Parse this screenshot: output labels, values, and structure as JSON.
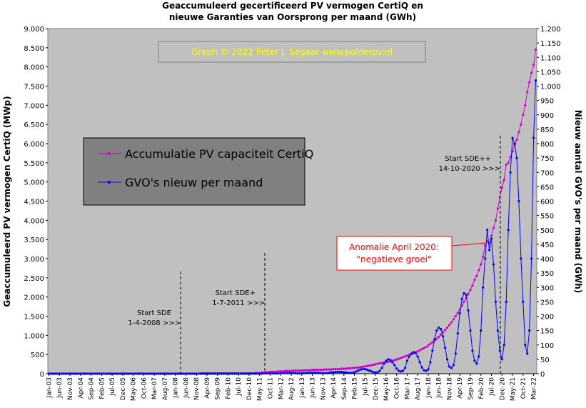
{
  "chart_data": {
    "type": "line",
    "title": [
      "Geaccumuleerd gecertificeerd PV vermogen CertiQ en",
      "nieuwe Garanties van Oorsprong per maand (GWh)"
    ],
    "ylabel": "Geaccumuleerd PV vermogen CertiQ (MWp)",
    "y2label": "Nieuw aantal GVO's per maand (GWh)",
    "annotations": [
      "Graph © 2022 Peter J. Segaar www.polderpv.nl",
      "Start SDE",
      "1-4-2008 >>>",
      "Start SDE+",
      "1-7-2011 >>>",
      "Start SDE++",
      "14-10-2020 >>>",
      "Anomalie April 2020:",
      "\"negatieve groei\""
    ],
    "ylim": [
      0,
      9000
    ],
    "yticks": [
      0,
      500,
      {
        "value": 1000,
        "label": "1.000"
      },
      {
        "value": 1500,
        "label": "1.500"
      },
      {
        "value": 2000,
        "label": "2.000"
      },
      {
        "value": 2500,
        "label": "2.500"
      },
      {
        "value": 3000,
        "label": "3.000"
      },
      {
        "value": 3500,
        "label": "3.500"
      },
      {
        "value": 4000,
        "label": "4.000"
      },
      {
        "value": 4500,
        "label": "4.500"
      },
      {
        "value": 5000,
        "label": "5.000"
      },
      {
        "value": 5500,
        "label": "5.500"
      },
      {
        "value": 6000,
        "label": "6.000"
      },
      {
        "value": 6500,
        "label": "6.500"
      },
      {
        "value": 7000,
        "label": "7.000"
      },
      {
        "value": 7500,
        "label": "7.500"
      },
      {
        "value": 8000,
        "label": "8.000"
      },
      {
        "value": 8500,
        "label": "8.500"
      },
      {
        "value": 9000,
        "label": "9.000"
      }
    ],
    "y2lim": [
      0,
      1200
    ],
    "y2ticks": [
      0,
      50,
      100,
      150,
      200,
      250,
      300,
      350,
      400,
      450,
      500,
      550,
      600,
      650,
      700,
      750,
      800,
      850,
      900,
      950,
      {
        "value": 1000,
        "label": "1.000"
      },
      {
        "value": 1050,
        "label": "1.050"
      },
      {
        "value": 1100,
        "label": "1.100"
      },
      {
        "value": 1150,
        "label": "1.150"
      },
      {
        "value": 1200,
        "label": "1.200"
      }
    ],
    "legend": "upper left",
    "categories": [
      "Jan-03",
      null,
      null,
      null,
      null,
      "Jun-03",
      null,
      null,
      null,
      null,
      "Nov-03",
      null,
      null,
      null,
      null,
      "Apr-04",
      null,
      null,
      null,
      null,
      "Sep-04",
      null,
      null,
      null,
      null,
      "Feb-05",
      null,
      null,
      null,
      null,
      "Jul-05",
      null,
      null,
      null,
      null,
      "Dec-05",
      null,
      null,
      null,
      null,
      "May-06",
      null,
      null,
      null,
      null,
      "Oct-06",
      null,
      null,
      null,
      null,
      "Mar-07",
      null,
      null,
      null,
      null,
      "Aug-07",
      null,
      null,
      null,
      null,
      "Jan-08",
      null,
      null,
      null,
      null,
      "Jun-08",
      null,
      null,
      null,
      null,
      "Nov-08",
      null,
      null,
      null,
      null,
      "Apr-09",
      null,
      null,
      null,
      null,
      "Sep-09",
      null,
      null,
      null,
      null,
      "Feb-10",
      null,
      null,
      null,
      null,
      "Jul-10",
      null,
      null,
      null,
      null,
      "Dec-10",
      null,
      null,
      null,
      null,
      "May-11",
      null,
      null,
      null,
      null,
      "Oct-11",
      null,
      null,
      null,
      null,
      "Mar-12",
      null,
      null,
      null,
      null,
      "Aug-12",
      null,
      null,
      null,
      null,
      "Jan-13",
      null,
      null,
      null,
      null,
      "Jun-13",
      null,
      null,
      null,
      null,
      "Nov-13",
      null,
      null,
      null,
      null,
      "Apr-14",
      null,
      null,
      null,
      null,
      "Sep-14",
      null,
      null,
      null,
      null,
      "Feb-15",
      null,
      null,
      null,
      null,
      "Jul-15",
      null,
      null,
      null,
      null,
      "Dec-15",
      null,
      null,
      null,
      null,
      "May-16",
      null,
      null,
      null,
      null,
      "Oct-16",
      null,
      null,
      null,
      null,
      "Mar-17",
      null,
      null,
      null,
      null,
      "Aug-17",
      null,
      null,
      null,
      null,
      "Jan-18",
      null,
      null,
      null,
      null,
      "Jun-18",
      null,
      null,
      null,
      null,
      "Nov-18",
      null,
      null,
      null,
      null,
      "Apr-19",
      null,
      null,
      null,
      null,
      "Sep-19",
      null,
      null,
      null,
      null,
      "Feb-20",
      null,
      null,
      null,
      null,
      "Jul-20",
      null,
      null,
      null,
      null,
      "Dec-20",
      null,
      null,
      null,
      null,
      "May-21",
      null,
      null,
      null,
      null,
      "Oct-21",
      null,
      null,
      null,
      null,
      "Mar-22",
      null
    ],
    "series": [
      {
        "name": "Accumulatie PV capaciteit CertiQ",
        "color": "#cc00cc",
        "values": [
          0,
          0,
          0,
          0,
          0,
          0,
          0,
          0,
          0,
          0,
          0,
          0,
          0,
          0,
          0,
          0,
          0,
          0,
          0,
          0,
          0,
          0,
          0,
          0,
          0,
          0,
          0,
          0,
          0,
          0,
          0,
          0,
          0,
          0,
          0,
          0,
          0,
          0,
          0,
          0,
          0,
          0,
          0,
          0,
          0,
          0,
          0,
          0,
          0,
          0,
          0,
          0,
          0,
          0,
          0,
          0,
          0,
          0,
          0,
          0,
          0,
          0,
          0,
          0,
          0,
          0,
          0,
          0,
          0,
          0,
          0,
          0,
          10,
          10,
          10,
          10,
          10,
          10,
          10,
          10,
          10,
          10,
          10,
          10,
          10,
          10,
          10,
          10,
          10,
          10,
          10,
          10,
          10,
          10,
          10,
          10,
          10,
          10,
          20,
          20,
          20,
          30,
          30,
          40,
          40,
          50,
          50,
          50,
          50,
          60,
          60,
          60,
          70,
          70,
          70,
          70,
          80,
          80,
          80,
          80,
          80,
          90,
          90,
          90,
          90,
          100,
          100,
          100,
          100,
          100,
          100,
          110,
          110,
          110,
          110,
          120,
          120,
          120,
          120,
          130,
          130,
          130,
          140,
          140,
          150,
          150,
          160,
          160,
          170,
          180,
          190,
          200,
          210,
          220,
          230,
          250,
          260,
          270,
          280,
          290,
          300,
          310,
          320,
          340,
          350,
          370,
          390,
          410,
          430,
          450,
          470,
          490,
          510,
          530,
          560,
          580,
          610,
          640,
          670,
          700,
          740,
          780,
          820,
          860,
          910,
          960,
          1020,
          1080,
          1140,
          1200,
          1270,
          1340,
          1420,
          1500,
          1580,
          1670,
          1770,
          1880,
          1980,
          2080,
          2180,
          2300,
          2450,
          2550,
          2700,
          2850,
          3050,
          3350,
          3450,
          3400,
          3600,
          3800,
          4000,
          4300,
          4600,
          4850,
          5050,
          5450,
          5500,
          5650,
          5800,
          5950,
          6100,
          6300,
          6500,
          6750,
          7000,
          7350,
          7600,
          7850,
          8050,
          8450
        ]
      },
      {
        "name": "GVO's nieuw per maand",
        "color": "#0000ff",
        "axis": "y2",
        "values": [
          0,
          0,
          0,
          0,
          0,
          0,
          0,
          0,
          0,
          0,
          0,
          0,
          0,
          0,
          0,
          0,
          0,
          0,
          0,
          0,
          0,
          0,
          0,
          0,
          0,
          0,
          0,
          0,
          0,
          0,
          0,
          0,
          0,
          0,
          0,
          0,
          0,
          0,
          0,
          0,
          0,
          0,
          0,
          0,
          0,
          0,
          0,
          0,
          0,
          0,
          0,
          0,
          0,
          0,
          0,
          0,
          0,
          0,
          0,
          0,
          0,
          0,
          0,
          0,
          0,
          0,
          0,
          0,
          0,
          0,
          0,
          0,
          0,
          0,
          0,
          0,
          0,
          0,
          0,
          0,
          0,
          0,
          0,
          0,
          0,
          0,
          0,
          0,
          0,
          0,
          0,
          0,
          0,
          0,
          0,
          0,
          0,
          0,
          0,
          0,
          0,
          0,
          1,
          1,
          1,
          1,
          1,
          1,
          1,
          1,
          2,
          2,
          2,
          2,
          2,
          2,
          2,
          2,
          1,
          1,
          1,
          2,
          2,
          3,
          3,
          3,
          3,
          3,
          3,
          2,
          2,
          2,
          2,
          3,
          4,
          5,
          6,
          6,
          6,
          6,
          5,
          4,
          3,
          3,
          3,
          5,
          8,
          12,
          15,
          16,
          16,
          14,
          11,
          8,
          5,
          4,
          5,
          10,
          20,
          35,
          45,
          50,
          48,
          40,
          30,
          18,
          10,
          8,
          10,
          20,
          45,
          60,
          70,
          75,
          72,
          60,
          40,
          22,
          12,
          10,
          15,
          40,
          80,
          120,
          150,
          160,
          155,
          130,
          90,
          50,
          25,
          20,
          30,
          70,
          140,
          210,
          260,
          280,
          275,
          220,
          150,
          80,
          45,
          35,
          60,
          150,
          300,
          400,
          500,
          430,
          470,
          380,
          250,
          150,
          80,
          50,
          100,
          250,
          500,
          700,
          820,
          800,
          750,
          600,
          400,
          250,
          100,
          70,
          150,
          400,
          820,
          1020
        ]
      }
    ]
  }
}
